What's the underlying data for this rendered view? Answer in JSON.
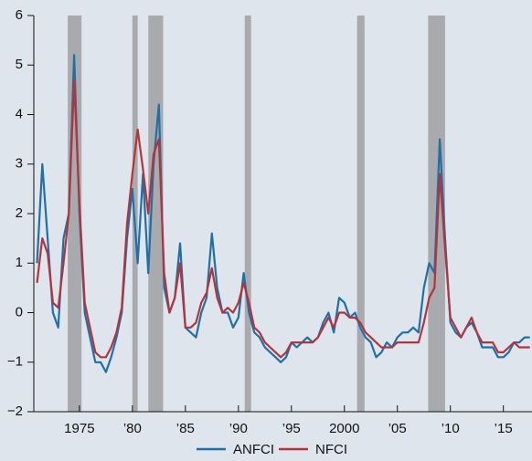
{
  "chart_data": {
    "type": "line",
    "x": [
      1971,
      1971.5,
      1972,
      1972.5,
      1973,
      1973.5,
      1974,
      1974.5,
      1975,
      1975.5,
      1976,
      1976.5,
      1977,
      1977.5,
      1978,
      1978.5,
      1979,
      1979.5,
      1980,
      1980.5,
      1981,
      1981.5,
      1982,
      1982.5,
      1983,
      1983.5,
      1984,
      1984.5,
      1985,
      1985.5,
      1986,
      1986.5,
      1987,
      1987.5,
      1988,
      1988.5,
      1989,
      1989.5,
      1990,
      1990.5,
      1991,
      1991.5,
      1992,
      1992.5,
      1993,
      1993.5,
      1994,
      1994.5,
      1995,
      1995.5,
      1996,
      1996.5,
      1997,
      1997.5,
      1998,
      1998.5,
      1999,
      1999.5,
      2000,
      2000.5,
      2001,
      2001.5,
      2002,
      2002.5,
      2003,
      2003.5,
      2004,
      2004.5,
      2005,
      2005.5,
      2006,
      2006.5,
      2007,
      2007.5,
      2008,
      2008.5,
      2009,
      2009.5,
      2010,
      2010.5,
      2011,
      2011.5,
      2012,
      2012.5,
      2013,
      2013.5,
      2014,
      2014.5,
      2015,
      2015.5,
      2016,
      2016.5,
      2017,
      2017.5
    ],
    "series": [
      {
        "name": "ANFCI",
        "color": "#1f6fa8",
        "values": [
          1.0,
          3.0,
          1.5,
          0.0,
          -0.3,
          1.5,
          2.0,
          5.2,
          2.0,
          0.0,
          -0.5,
          -1.0,
          -1.0,
          -1.2,
          -0.9,
          -0.5,
          0.0,
          1.5,
          2.5,
          1.0,
          2.8,
          0.8,
          3.0,
          4.2,
          0.5,
          0.0,
          0.3,
          1.4,
          -0.3,
          -0.4,
          -0.5,
          0.0,
          0.3,
          1.6,
          0.5,
          0.0,
          0.0,
          -0.3,
          -0.1,
          0.8,
          0.0,
          -0.4,
          -0.5,
          -0.7,
          -0.8,
          -0.9,
          -1.0,
          -0.9,
          -0.6,
          -0.7,
          -0.6,
          -0.5,
          -0.6,
          -0.5,
          -0.2,
          0.0,
          -0.4,
          0.3,
          0.2,
          -0.1,
          0.0,
          -0.3,
          -0.5,
          -0.6,
          -0.9,
          -0.8,
          -0.6,
          -0.7,
          -0.5,
          -0.4,
          -0.4,
          -0.3,
          -0.4,
          0.5,
          1.0,
          0.8,
          3.5,
          1.5,
          -0.2,
          -0.4,
          -0.5,
          -0.3,
          -0.2,
          -0.4,
          -0.7,
          -0.7,
          -0.7,
          -0.9,
          -0.9,
          -0.8,
          -0.6,
          -0.6,
          -0.5,
          -0.5
        ]
      },
      {
        "name": "NFCI",
        "color": "#b5343a",
        "values": [
          0.6,
          1.5,
          1.2,
          0.2,
          0.1,
          1.0,
          2.0,
          4.7,
          2.2,
          0.2,
          -0.3,
          -0.8,
          -0.9,
          -0.9,
          -0.7,
          -0.4,
          0.1,
          1.8,
          2.8,
          3.7,
          2.9,
          2.0,
          3.2,
          3.5,
          0.8,
          0.0,
          0.3,
          1.0,
          -0.3,
          -0.3,
          -0.2,
          0.2,
          0.4,
          0.9,
          0.3,
          0.0,
          0.1,
          0.0,
          0.2,
          0.6,
          0.2,
          -0.3,
          -0.4,
          -0.6,
          -0.7,
          -0.8,
          -0.9,
          -0.8,
          -0.6,
          -0.6,
          -0.6,
          -0.6,
          -0.6,
          -0.5,
          -0.3,
          -0.1,
          -0.3,
          0.0,
          0.0,
          -0.1,
          -0.1,
          -0.2,
          -0.4,
          -0.5,
          -0.6,
          -0.7,
          -0.7,
          -0.7,
          -0.6,
          -0.6,
          -0.6,
          -0.6,
          -0.6,
          -0.2,
          0.3,
          0.5,
          2.8,
          1.3,
          -0.1,
          -0.3,
          -0.5,
          -0.3,
          -0.1,
          -0.4,
          -0.6,
          -0.6,
          -0.6,
          -0.8,
          -0.8,
          -0.7,
          -0.6,
          -0.7,
          -0.7,
          -0.7
        ]
      }
    ],
    "recessions": [
      [
        1973.9,
        1975.2
      ],
      [
        1980.0,
        1980.5
      ],
      [
        1981.5,
        1982.9
      ],
      [
        1990.6,
        1991.2
      ],
      [
        2001.2,
        2001.9
      ],
      [
        2007.9,
        2009.5
      ]
    ],
    "recession_color": "#a9aaad",
    "xlim": [
      1970.7,
      2017.7
    ],
    "xticks": [
      {
        "value": 1975,
        "label": "1975"
      },
      {
        "value": 1980,
        "label": "’80"
      },
      {
        "value": 1985,
        "label": "’85"
      },
      {
        "value": 1990,
        "label": "’90"
      },
      {
        "value": 1995,
        "label": "’95"
      },
      {
        "value": 2000,
        "label": "2000"
      },
      {
        "value": 2005,
        "label": "’05"
      },
      {
        "value": 2010,
        "label": "’10"
      },
      {
        "value": 2015,
        "label": "’15"
      }
    ],
    "ylim": [
      -2,
      6
    ],
    "yticks": [
      {
        "value": -2,
        "label": "−2"
      },
      {
        "value": -1,
        "label": "−1"
      },
      0,
      1,
      2,
      3,
      4,
      5,
      6
    ],
    "legend": "bottom"
  }
}
